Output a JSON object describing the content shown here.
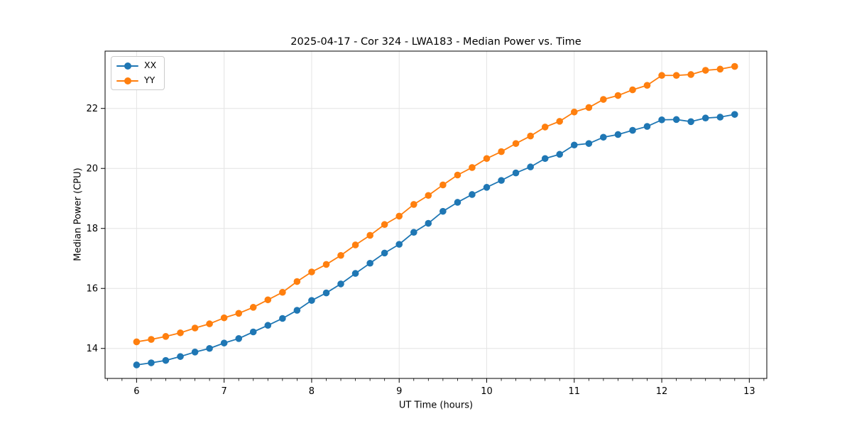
{
  "figure": {
    "title": "2025-04-17 - Cor 324 - LWA183 - Median Power vs. Time"
  },
  "chart_data": {
    "type": "line",
    "title": "2025-04-17 - Cor 324 - LWA183 - Median Power vs. Time",
    "xlabel": "UT Time (hours)",
    "ylabel": "Median Power (CPU)",
    "xlim": [
      5.64,
      13.2
    ],
    "ylim": [
      13.0,
      23.91
    ],
    "xticks": [
      6,
      7,
      8,
      9,
      10,
      11,
      12,
      13
    ],
    "yticks": [
      14,
      16,
      18,
      20,
      22
    ],
    "x_minor_step": 0.1666667,
    "grid": "major",
    "grid_color": "#e4e4e4",
    "spine_color": "#000000",
    "background": "#ffffff",
    "legend_position": "upper left",
    "marker": "circle",
    "x": [
      6.0,
      6.167,
      6.333,
      6.5,
      6.667,
      6.833,
      7.0,
      7.167,
      7.333,
      7.5,
      7.667,
      7.833,
      8.0,
      8.167,
      8.333,
      8.5,
      8.667,
      8.833,
      9.0,
      9.167,
      9.333,
      9.5,
      9.667,
      9.833,
      10.0,
      10.167,
      10.333,
      10.5,
      10.667,
      10.833,
      11.0,
      11.167,
      11.333,
      11.5,
      11.667,
      11.833,
      12.0,
      12.167,
      12.333,
      12.5,
      12.667,
      12.833
    ],
    "series": [
      {
        "name": "XX",
        "color": "#1f77b4",
        "values": [
          13.45,
          13.52,
          13.6,
          13.73,
          13.88,
          14.0,
          14.18,
          14.33,
          14.55,
          14.77,
          15.0,
          15.27,
          15.6,
          15.85,
          16.15,
          16.5,
          16.84,
          17.18,
          17.47,
          17.87,
          18.17,
          18.57,
          18.87,
          19.13,
          19.37,
          19.6,
          19.85,
          20.05,
          20.33,
          20.47,
          20.78,
          20.83,
          21.04,
          21.13,
          21.27,
          21.4,
          21.62,
          21.63,
          21.56,
          21.68,
          21.71,
          21.8
        ]
      },
      {
        "name": "YY",
        "color": "#ff7f0e",
        "values": [
          14.22,
          14.3,
          14.4,
          14.52,
          14.68,
          14.82,
          15.02,
          15.17,
          15.37,
          15.62,
          15.87,
          16.23,
          16.55,
          16.8,
          17.1,
          17.45,
          17.77,
          18.13,
          18.41,
          18.8,
          19.1,
          19.45,
          19.78,
          20.03,
          20.33,
          20.56,
          20.83,
          21.08,
          21.38,
          21.57,
          21.88,
          22.03,
          22.3,
          22.43,
          22.62,
          22.77,
          23.1,
          23.1,
          23.13,
          23.27,
          23.31,
          23.4
        ]
      }
    ]
  }
}
